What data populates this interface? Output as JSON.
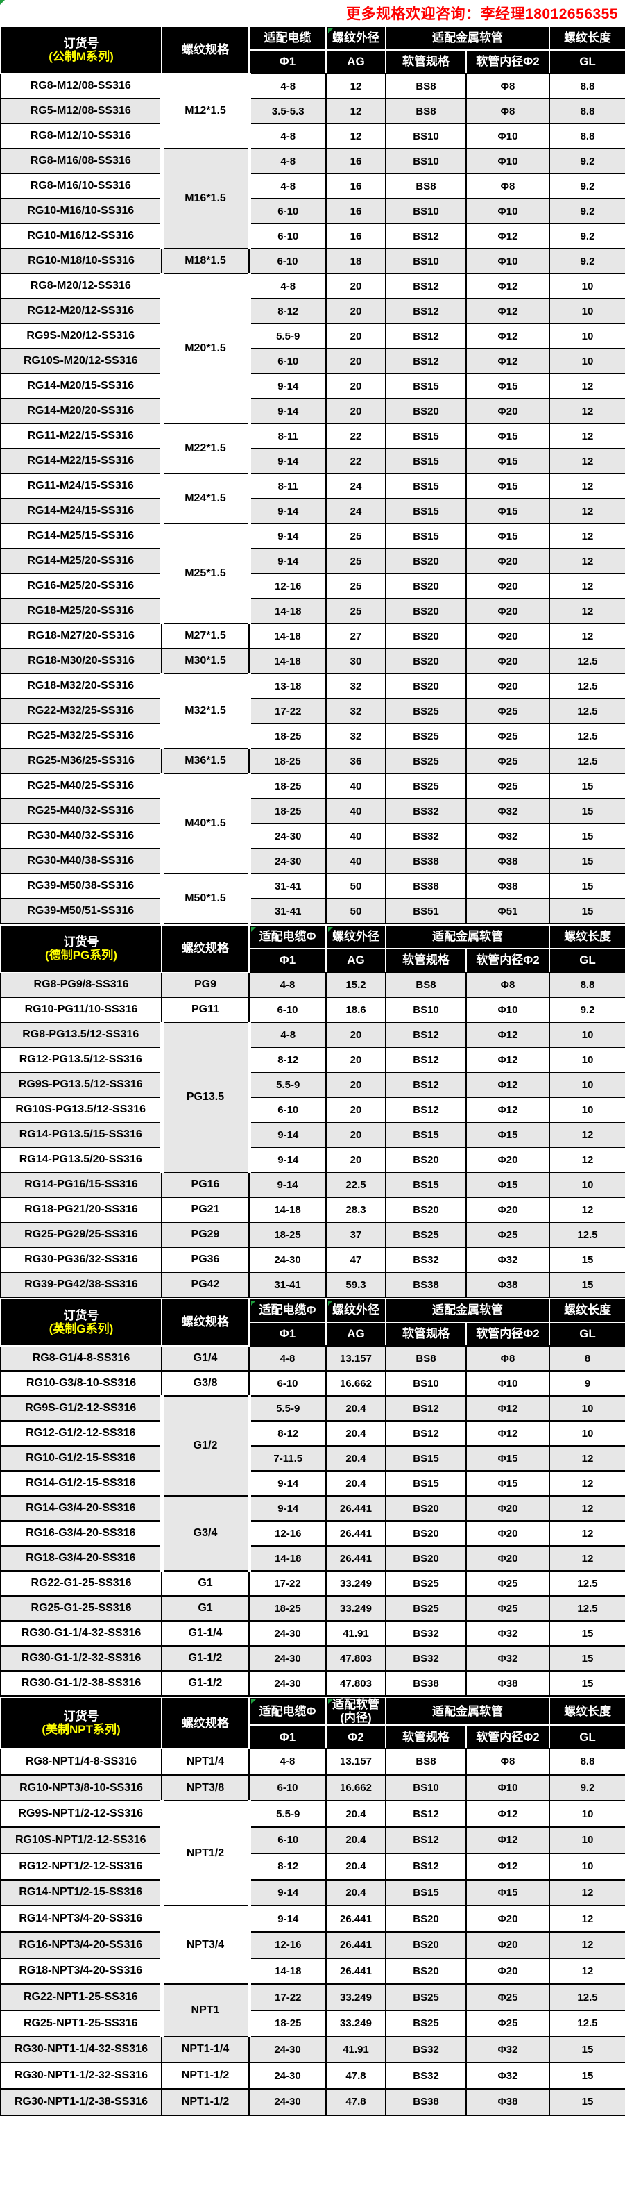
{
  "banner": {
    "text": "更多规格欢迎咨询：李经理18012656355",
    "color": "#fe0000"
  },
  "colors": {
    "header_bg": "#000000",
    "header_text": "#ffffff",
    "subtitle_yellow": "#ffff00",
    "row_gray": "#e7e7e7",
    "row_white": "#ffffff",
    "border": "#000000",
    "error_marker_green": "#1f9e3e"
  },
  "sections": [
    {
      "series": "m",
      "title": "订货号",
      "subtitle": "(公制M系列)",
      "col_thread": "螺纹规格",
      "col_cable_top": "适配电缆",
      "col_cable_bot": "Φ1",
      "col_od_top": "螺纹外径",
      "col_od_bot": "AG",
      "col_hose_group": "适配金属软管",
      "col_hose_spec": "软管规格",
      "col_hose_id": "软管内径Φ2",
      "col_len_top": "螺纹长度",
      "col_len_bot": "GL",
      "first_shade": "white",
      "err_marks": {
        "cable": false,
        "od": true
      },
      "rows": [
        {
          "order": "RG8-M12/08-SS316",
          "thread": "M12*1.5",
          "span": 3,
          "cable": "4-8",
          "od": "12",
          "hose": "BS8",
          "hose_id": "Φ8",
          "gl": "8.8"
        },
        {
          "order": "RG5-M12/08-SS316",
          "cable": "3.5-5.3",
          "od": "12",
          "hose": "BS8",
          "hose_id": "Φ8",
          "gl": "8.8"
        },
        {
          "order": "RG8-M12/10-SS316",
          "cable": "4-8",
          "od": "12",
          "hose": "BS10",
          "hose_id": "Φ10",
          "gl": "8.8"
        },
        {
          "order": "RG8-M16/08-SS316",
          "thread": "M16*1.5",
          "span": 4,
          "cable": "4-8",
          "od": "16",
          "hose": "BS10",
          "hose_id": "Φ10",
          "gl": "9.2"
        },
        {
          "order": "RG8-M16/10-SS316",
          "cable": "4-8",
          "od": "16",
          "hose": "BS8",
          "hose_id": "Φ8",
          "gl": "9.2"
        },
        {
          "order": "RG10-M16/10-SS316",
          "cable": "6-10",
          "od": "16",
          "hose": "BS10",
          "hose_id": "Φ10",
          "gl": "9.2"
        },
        {
          "order": "RG10-M16/12-SS316",
          "cable": "6-10",
          "od": "16",
          "hose": "BS12",
          "hose_id": "Φ12",
          "gl": "9.2"
        },
        {
          "order": "RG10-M18/10-SS316",
          "thread": "M18*1.5",
          "span": 1,
          "cable": "6-10",
          "od": "18",
          "hose": "BS10",
          "hose_id": "Φ10",
          "gl": "9.2"
        },
        {
          "order": "RG8-M20/12-SS316",
          "thread": "M20*1.5",
          "span": 6,
          "cable": "4-8",
          "od": "20",
          "hose": "BS12",
          "hose_id": "Φ12",
          "gl": "10"
        },
        {
          "order": "RG12-M20/12-SS316",
          "cable": "8-12",
          "od": "20",
          "hose": "BS12",
          "hose_id": "Φ12",
          "gl": "10"
        },
        {
          "order": "RG9S-M20/12-SS316",
          "cable": "5.5-9",
          "od": "20",
          "hose": "BS12",
          "hose_id": "Φ12",
          "gl": "10"
        },
        {
          "order": "RG10S-M20/12-SS316",
          "cable": "6-10",
          "od": "20",
          "hose": "BS12",
          "hose_id": "Φ12",
          "gl": "10"
        },
        {
          "order": "RG14-M20/15-SS316",
          "cable": "9-14",
          "od": "20",
          "hose": "BS15",
          "hose_id": "Φ15",
          "gl": "12"
        },
        {
          "order": "RG14-M20/20-SS316",
          "cable": "9-14",
          "od": "20",
          "hose": "BS20",
          "hose_id": "Φ20",
          "gl": "12"
        },
        {
          "order": "RG11-M22/15-SS316",
          "thread": "M22*1.5",
          "span": 2,
          "cable": "8-11",
          "od": "22",
          "hose": "BS15",
          "hose_id": "Φ15",
          "gl": "12"
        },
        {
          "order": "RG14-M22/15-SS316",
          "cable": "9-14",
          "od": "22",
          "hose": "BS15",
          "hose_id": "Φ15",
          "gl": "12"
        },
        {
          "order": "RG11-M24/15-SS316",
          "thread": "M24*1.5",
          "span": 2,
          "cable": "8-11",
          "od": "24",
          "hose": "BS15",
          "hose_id": "Φ15",
          "gl": "12"
        },
        {
          "order": "RG14-M24/15-SS316",
          "cable": "9-14",
          "od": "24",
          "hose": "BS15",
          "hose_id": "Φ15",
          "gl": "12"
        },
        {
          "order": "RG14-M25/15-SS316",
          "thread": "M25*1.5",
          "span": 4,
          "cable": "9-14",
          "od": "25",
          "hose": "BS15",
          "hose_id": "Φ15",
          "gl": "12"
        },
        {
          "order": "RG14-M25/20-SS316",
          "cable": "9-14",
          "od": "25",
          "hose": "BS20",
          "hose_id": "Φ20",
          "gl": "12"
        },
        {
          "order": "RG16-M25/20-SS316",
          "cable": "12-16",
          "od": "25",
          "hose": "BS20",
          "hose_id": "Φ20",
          "gl": "12"
        },
        {
          "order": "RG18-M25/20-SS316",
          "cable": "14-18",
          "od": "25",
          "hose": "BS20",
          "hose_id": "Φ20",
          "gl": "12"
        },
        {
          "order": "RG18-M27/20-SS316",
          "thread": "M27*1.5",
          "span": 1,
          "cable": "14-18",
          "od": "27",
          "hose": "BS20",
          "hose_id": "Φ20",
          "gl": "12"
        },
        {
          "order": "RG18-M30/20-SS316",
          "thread": "M30*1.5",
          "span": 1,
          "cable": "14-18",
          "od": "30",
          "hose": "BS20",
          "hose_id": "Φ20",
          "gl": "12.5"
        },
        {
          "order": "RG18-M32/20-SS316",
          "thread": "M32*1.5",
          "span": 3,
          "cable": "13-18",
          "od": "32",
          "hose": "BS20",
          "hose_id": "Φ20",
          "gl": "12.5"
        },
        {
          "order": "RG22-M32/25-SS316",
          "cable": "17-22",
          "od": "32",
          "hose": "BS25",
          "hose_id": "Φ25",
          "gl": "12.5"
        },
        {
          "order": "RG25-M32/25-SS316",
          "cable": "18-25",
          "od": "32",
          "hose": "BS25",
          "hose_id": "Φ25",
          "gl": "12.5"
        },
        {
          "order": "RG25-M36/25-SS316",
          "thread": "M36*1.5",
          "span": 1,
          "cable": "18-25",
          "od": "36",
          "hose": "BS25",
          "hose_id": "Φ25",
          "gl": "12.5"
        },
        {
          "order": "RG25-M40/25-SS316",
          "thread": "M40*1.5",
          "span": 4,
          "cable": "18-25",
          "od": "40",
          "hose": "BS25",
          "hose_id": "Φ25",
          "gl": "15"
        },
        {
          "order": "RG25-M40/32-SS316",
          "cable": "18-25",
          "od": "40",
          "hose": "BS32",
          "hose_id": "Φ32",
          "gl": "15"
        },
        {
          "order": "RG30-M40/32-SS316",
          "cable": "24-30",
          "od": "40",
          "hose": "BS32",
          "hose_id": "Φ32",
          "gl": "15"
        },
        {
          "order": "RG30-M40/38-SS316",
          "cable": "24-30",
          "od": "40",
          "hose": "BS38",
          "hose_id": "Φ38",
          "gl": "15"
        },
        {
          "order": "RG39-M50/38-SS316",
          "thread": "M50*1.5",
          "span": 2,
          "cable": "31-41",
          "od": "50",
          "hose": "BS38",
          "hose_id": "Φ38",
          "gl": "15"
        },
        {
          "order": "RG39-M50/51-SS316",
          "cable": "31-41",
          "od": "50",
          "hose": "BS51",
          "hose_id": "Φ51",
          "gl": "15"
        }
      ]
    },
    {
      "series": "pg",
      "title": "订货号",
      "subtitle": "(德制PG系列)",
      "col_thread": "螺纹规格",
      "col_cable_top": "适配电缆Φ",
      "col_cable_bot": "Φ1",
      "col_od_top": "螺纹外径",
      "col_od_bot": "AG",
      "col_hose_group": "适配金属软管",
      "col_hose_spec": "软管规格",
      "col_hose_id": "软管内径Φ2",
      "col_len_top": "螺纹长度",
      "col_len_bot": "GL",
      "first_shade": "gray",
      "err_marks": {
        "cable": true,
        "od": true
      },
      "rows": [
        {
          "order": "RG8-PG9/8-SS316",
          "thread": "PG9",
          "span": 1,
          "cable": "4-8",
          "od": "15.2",
          "hose": "BS8",
          "hose_id": "Φ8",
          "gl": "8.8"
        },
        {
          "order": "RG10-PG11/10-SS316",
          "thread": "PG11",
          "span": 1,
          "cable": "6-10",
          "od": "18.6",
          "hose": "BS10",
          "hose_id": "Φ10",
          "gl": "9.2"
        },
        {
          "order": "RG8-PG13.5/12-SS316",
          "thread": "PG13.5",
          "span": 6,
          "cable": "4-8",
          "od": "20",
          "hose": "BS12",
          "hose_id": "Φ12",
          "gl": "10"
        },
        {
          "order": "RG12-PG13.5/12-SS316",
          "cable": "8-12",
          "od": "20",
          "hose": "BS12",
          "hose_id": "Φ12",
          "gl": "10"
        },
        {
          "order": "RG9S-PG13.5/12-SS316",
          "cable": "5.5-9",
          "od": "20",
          "hose": "BS12",
          "hose_id": "Φ12",
          "gl": "10"
        },
        {
          "order": "RG10S-PG13.5/12-SS316",
          "cable": "6-10",
          "od": "20",
          "hose": "BS12",
          "hose_id": "Φ12",
          "gl": "10"
        },
        {
          "order": "RG14-PG13.5/15-SS316",
          "cable": "9-14",
          "od": "20",
          "hose": "BS15",
          "hose_id": "Φ15",
          "gl": "12"
        },
        {
          "order": "RG14-PG13.5/20-SS316",
          "cable": "9-14",
          "od": "20",
          "hose": "BS20",
          "hose_id": "Φ20",
          "gl": "12"
        },
        {
          "order": "RG14-PG16/15-SS316",
          "thread": "PG16",
          "span": 1,
          "cable": "9-14",
          "od": "22.5",
          "hose": "BS15",
          "hose_id": "Φ15",
          "gl": "10"
        },
        {
          "order": "RG18-PG21/20-SS316",
          "thread": "PG21",
          "span": 1,
          "cable": "14-18",
          "od": "28.3",
          "hose": "BS20",
          "hose_id": "Φ20",
          "gl": "12"
        },
        {
          "order": "RG25-PG29/25-SS316",
          "thread": "PG29",
          "span": 1,
          "cable": "18-25",
          "od": "37",
          "hose": "BS25",
          "hose_id": "Φ25",
          "gl": "12.5"
        },
        {
          "order": "RG30-PG36/32-SS316",
          "thread": "PG36",
          "span": 1,
          "cable": "24-30",
          "od": "47",
          "hose": "BS32",
          "hose_id": "Φ32",
          "gl": "15"
        },
        {
          "order": "RG39-PG42/38-SS316",
          "thread": "PG42",
          "span": 1,
          "cable": "31-41",
          "od": "59.3",
          "hose": "BS38",
          "hose_id": "Φ38",
          "gl": "15"
        }
      ]
    },
    {
      "series": "g",
      "title": "订货号",
      "subtitle": "(英制G系列)",
      "col_thread": "螺纹规格",
      "col_cable_top": "适配电缆Φ",
      "col_cable_bot": "Φ1",
      "col_od_top": "螺纹外径",
      "col_od_bot": "AG",
      "col_hose_group": "适配金属软管",
      "col_hose_spec": "软管规格",
      "col_hose_id": "软管内径Φ2",
      "col_len_top": "螺纹长度",
      "col_len_bot": "GL",
      "first_shade": "gray",
      "err_marks": {
        "cable": true,
        "od": true
      },
      "rows": [
        {
          "order": "RG8-G1/4-8-SS316",
          "thread": "G1/4",
          "span": 1,
          "cable": "4-8",
          "od": "13.157",
          "hose": "BS8",
          "hose_id": "Φ8",
          "gl": "8"
        },
        {
          "order": "RG10-G3/8-10-SS316",
          "thread": "G3/8",
          "span": 1,
          "cable": "6-10",
          "od": "16.662",
          "hose": "BS10",
          "hose_id": "Φ10",
          "gl": "9"
        },
        {
          "order": "RG9S-G1/2-12-SS316",
          "thread": "G1/2",
          "span": 4,
          "cable": "5.5-9",
          "od": "20.4",
          "hose": "BS12",
          "hose_id": "Φ12",
          "gl": "10"
        },
        {
          "order": "RG12-G1/2-12-SS316",
          "cable": "8-12",
          "od": "20.4",
          "hose": "BS12",
          "hose_id": "Φ12",
          "gl": "10"
        },
        {
          "order": "RG10-G1/2-15-SS316",
          "cable": "7-11.5",
          "od": "20.4",
          "hose": "BS15",
          "hose_id": "Φ15",
          "gl": "12"
        },
        {
          "order": "RG14-G1/2-15-SS316",
          "cable": "9-14",
          "od": "20.4",
          "hose": "BS15",
          "hose_id": "Φ15",
          "gl": "12"
        },
        {
          "order": "RG14-G3/4-20-SS316",
          "thread": "G3/4",
          "span": 3,
          "cable": "9-14",
          "od": "26.441",
          "hose": "BS20",
          "hose_id": "Φ20",
          "gl": "12"
        },
        {
          "order": "RG16-G3/4-20-SS316",
          "cable": "12-16",
          "od": "26.441",
          "hose": "BS20",
          "hose_id": "Φ20",
          "gl": "12"
        },
        {
          "order": "RG18-G3/4-20-SS316",
          "cable": "14-18",
          "od": "26.441",
          "hose": "BS20",
          "hose_id": "Φ20",
          "gl": "12"
        },
        {
          "order": "RG22-G1-25-SS316",
          "thread": "G1",
          "span": 1,
          "cable": "17-22",
          "od": "33.249",
          "hose": "BS25",
          "hose_id": "Φ25",
          "gl": "12.5"
        },
        {
          "order": "RG25-G1-25-SS316",
          "thread": "G1",
          "span": 1,
          "cable": "18-25",
          "od": "33.249",
          "hose": "BS25",
          "hose_id": "Φ25",
          "gl": "12.5"
        },
        {
          "order": "RG30-G1-1/4-32-SS316",
          "thread": "G1-1/4",
          "span": 1,
          "cable": "24-30",
          "od": "41.91",
          "hose": "BS32",
          "hose_id": "Φ32",
          "gl": "15"
        },
        {
          "order": "RG30-G1-1/2-32-SS316",
          "thread": "G1-1/2",
          "span": 1,
          "cable": "24-30",
          "od": "47.803",
          "hose": "BS32",
          "hose_id": "Φ32",
          "gl": "15"
        },
        {
          "order": "RG30-G1-1/2-38-SS316",
          "thread": "G1-1/2",
          "span": 1,
          "cable": "24-30",
          "od": "47.803",
          "hose": "BS38",
          "hose_id": "Φ38",
          "gl": "15"
        }
      ]
    },
    {
      "series": "npt",
      "title": "订货号",
      "subtitle": "(美制NPT系列)",
      "col_thread": "螺纹规格",
      "col_cable_top": "适配电缆Φ",
      "col_cable_bot": "Φ1",
      "col_od_top": "适配软管\n(内径)",
      "col_od_bot": "Φ2",
      "col_hose_group": "适配金属软管",
      "col_hose_spec": "软管规格",
      "col_hose_id": "软管内径Φ2",
      "col_len_top": "螺纹长度",
      "col_len_bot": "GL",
      "first_shade": "white",
      "err_marks": {
        "cable": true,
        "od": true
      },
      "rows": [
        {
          "order": "RG8-NPT1/4-8-SS316",
          "thread": "NPT1/4",
          "span": 1,
          "cable": "4-8",
          "od": "13.157",
          "hose": "BS8",
          "hose_id": "Φ8",
          "gl": "8.8"
        },
        {
          "order": "RG10-NPT3/8-10-SS316",
          "thread": "NPT3/8",
          "span": 1,
          "cable": "6-10",
          "od": "16.662",
          "hose": "BS10",
          "hose_id": "Φ10",
          "gl": "9.2"
        },
        {
          "order": "RG9S-NPT1/2-12-SS316",
          "thread": "NPT1/2",
          "span": 4,
          "cable": "5.5-9",
          "od": "20.4",
          "hose": "BS12",
          "hose_id": "Φ12",
          "gl": "10"
        },
        {
          "order": "RG10S-NPT1/2-12-SS316",
          "cable": "6-10",
          "od": "20.4",
          "hose": "BS12",
          "hose_id": "Φ12",
          "gl": "10"
        },
        {
          "order": "RG12-NPT1/2-12-SS316",
          "cable": "8-12",
          "od": "20.4",
          "hose": "BS12",
          "hose_id": "Φ12",
          "gl": "10"
        },
        {
          "order": "RG14-NPT1/2-15-SS316",
          "cable": "9-14",
          "od": "20.4",
          "hose": "BS15",
          "hose_id": "Φ15",
          "gl": "12"
        },
        {
          "order": "RG14-NPT3/4-20-SS316",
          "thread": "NPT3/4",
          "span": 3,
          "cable": "9-14",
          "od": "26.441",
          "hose": "BS20",
          "hose_id": "Φ20",
          "gl": "12"
        },
        {
          "order": "RG16-NPT3/4-20-SS316",
          "cable": "12-16",
          "od": "26.441",
          "hose": "BS20",
          "hose_id": "Φ20",
          "gl": "12"
        },
        {
          "order": "RG18-NPT3/4-20-SS316",
          "cable": "14-18",
          "od": "26.441",
          "hose": "BS20",
          "hose_id": "Φ20",
          "gl": "12"
        },
        {
          "order": "RG22-NPT1-25-SS316",
          "thread": "NPT1",
          "span": 2,
          "cable": "17-22",
          "od": "33.249",
          "hose": "BS25",
          "hose_id": "Φ25",
          "gl": "12.5"
        },
        {
          "order": "RG25-NPT1-25-SS316",
          "cable": "18-25",
          "od": "33.249",
          "hose": "BS25",
          "hose_id": "Φ25",
          "gl": "12.5"
        },
        {
          "order": "RG30-NPT1-1/4-32-SS316",
          "thread": "NPT1-1/4",
          "span": 1,
          "cable": "24-30",
          "od": "41.91",
          "hose": "BS32",
          "hose_id": "Φ32",
          "gl": "15"
        },
        {
          "order": "RG30-NPT1-1/2-32-SS316",
          "thread": "NPT1-1/2",
          "span": 1,
          "cable": "24-30",
          "od": "47.8",
          "hose": "BS32",
          "hose_id": "Φ32",
          "gl": "15"
        },
        {
          "order": "RG30-NPT1-1/2-38-SS316",
          "thread": "NPT1-1/2",
          "span": 1,
          "cable": "24-30",
          "od": "47.8",
          "hose": "BS38",
          "hose_id": "Φ38",
          "gl": "15"
        }
      ]
    }
  ]
}
